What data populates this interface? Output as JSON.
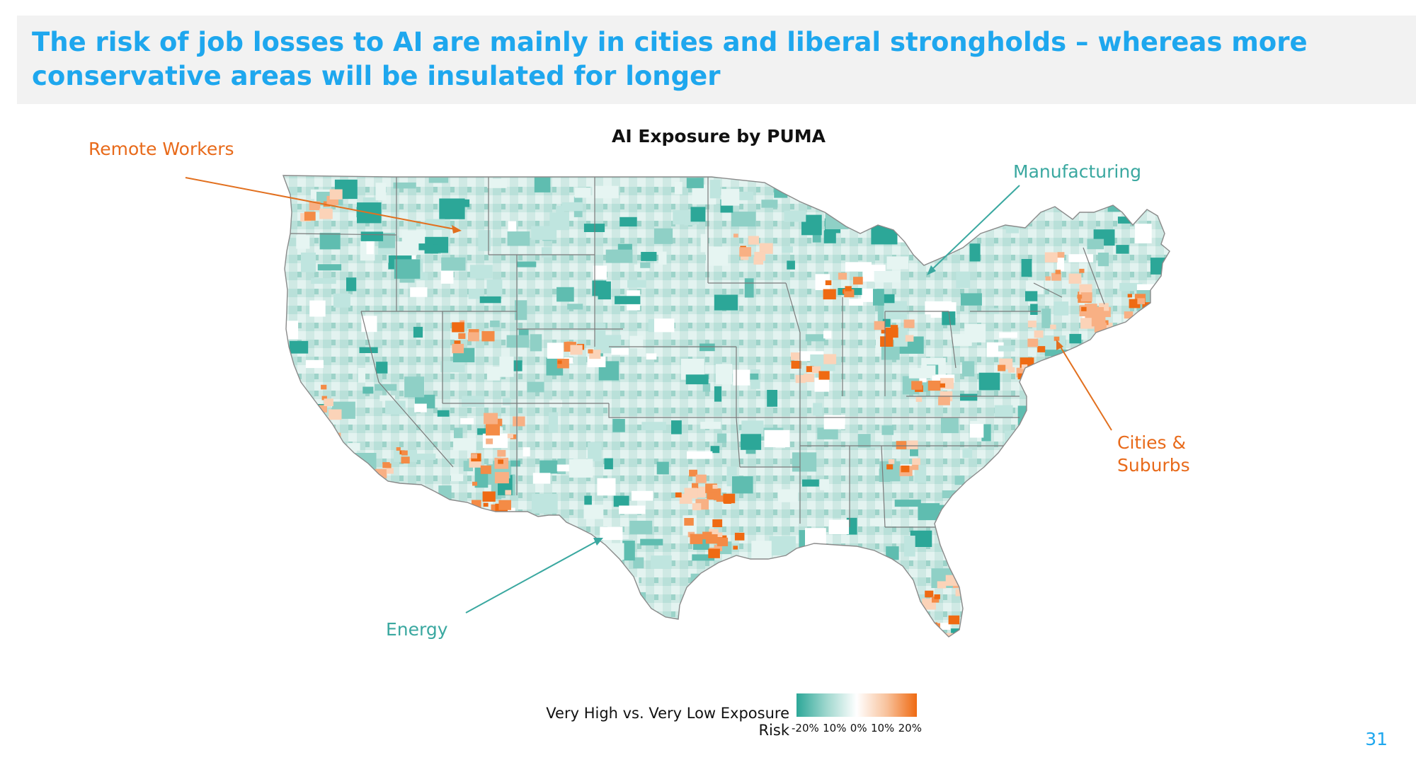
{
  "slide": {
    "title": "The risk of job losses to AI are mainly in cities and liberal strongholds – whereas more conservative areas will be insulated for longer",
    "page_number": "31"
  },
  "map": {
    "title": "AI Exposure by PUMA",
    "region": "United States (contiguous)",
    "annotations": {
      "remote_workers": "Remote Workers",
      "manufacturing": "Manufacturing",
      "energy": "Energy",
      "cities_suburbs_line1": "Cities &",
      "cities_suburbs_line2": "Suburbs"
    },
    "legend": {
      "label": "Very High vs. Very Low Exposure Risk",
      "ticks": [
        "-20%",
        "10%",
        "0%",
        "10%",
        "20%"
      ],
      "colors": {
        "low": "#2ca798",
        "mid": "#ffffff",
        "high": "#ef6a12"
      }
    }
  }
}
